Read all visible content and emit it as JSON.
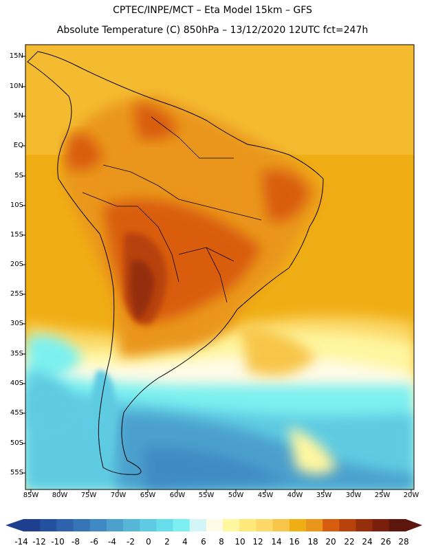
{
  "header": {
    "line1": "CPTEC/INPE/MCT –  Eta Model 15km – GFS",
    "line2": "Absolute Temperature (C) 850hPa – 13/12/2020 12UTC fct=247h"
  },
  "map": {
    "latitudes": [
      "15N",
      "10N",
      "5N",
      "EQ",
      "5S",
      "10S",
      "15S",
      "20S",
      "25S",
      "30S",
      "35S",
      "40S",
      "45S",
      "50S",
      "55S"
    ],
    "longitudes": [
      "85W",
      "80W",
      "75W",
      "70W",
      "65W",
      "60W",
      "55W",
      "50W",
      "45W",
      "40W",
      "35W",
      "30W",
      "25W",
      "20W"
    ]
  },
  "colorbar": {
    "labels": [
      "-14",
      "-12",
      "-10",
      "-8",
      "-6",
      "-4",
      "-2",
      "0",
      "2",
      "4",
      "6",
      "8",
      "10",
      "12",
      "14",
      "16",
      "18",
      "20",
      "22",
      "24",
      "26",
      "28"
    ],
    "colors": [
      "#1e3f8e",
      "#2450a0",
      "#2e62ad",
      "#3575b6",
      "#3f8ac4",
      "#4ba0cd",
      "#55b6d8",
      "#5fcbe2",
      "#68deea",
      "#7cf0f0",
      "#d2f5f7",
      "#fffbe6",
      "#fff6a0",
      "#fde97a",
      "#fbd868",
      "#f7c649",
      "#f0ae15",
      "#ea961c",
      "#d95d0f",
      "#b8420c",
      "#952e0b",
      "#7a1f0b",
      "#5c160d"
    ]
  }
}
